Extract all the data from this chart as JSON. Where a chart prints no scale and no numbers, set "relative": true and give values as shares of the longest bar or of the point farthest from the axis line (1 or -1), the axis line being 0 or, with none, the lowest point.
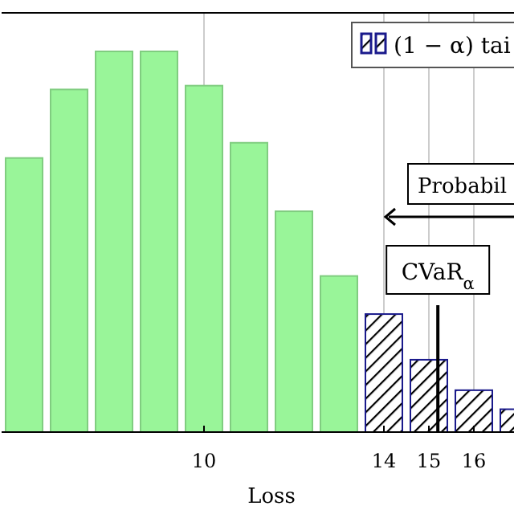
{
  "chart_data": {
    "type": "bar",
    "relative": true,
    "xlabel": "Loss",
    "xlim": [
      5.5,
      17.5
    ],
    "xticks": [
      10,
      14,
      15,
      16,
      {
        "value": 17,
        "label": null
      }
    ],
    "grid": "x",
    "legend": "top right",
    "series": [
      {
        "color": "#99f599",
        "x": [
          6,
          7,
          8,
          9,
          10,
          11,
          12,
          13
        ],
        "values": [
          0.72,
          0.9,
          1,
          1,
          0.91,
          0.76,
          0.58,
          0.41
        ]
      },
      {
        "name": "(1 − α) tai",
        "color": "#1a1a8c",
        "x": [
          14,
          15,
          16,
          17
        ],
        "values": [
          0.31,
          0.19,
          0.11,
          0.06
        ]
      }
    ],
    "ref_lines": [
      {
        "axis": "x",
        "value": 15.2,
        "label": "CVaR$_{α}$",
        "color": "#000000"
      }
    ],
    "annotations": [
      "Probabil"
    ]
  }
}
